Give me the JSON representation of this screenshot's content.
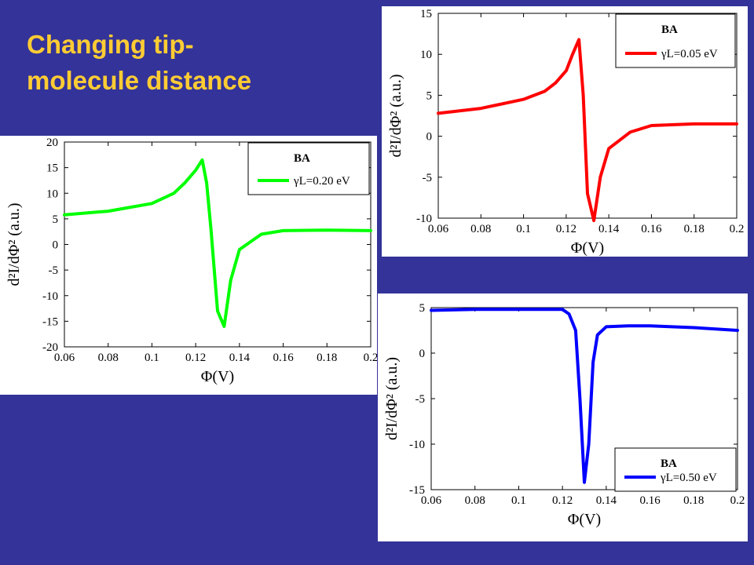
{
  "slide": {
    "title_line1": "Changing tip-",
    "title_line2": "molecule distance"
  },
  "chart_data": [
    {
      "type": "line",
      "color": "#ff0000",
      "xlabel": "Φ(V)",
      "ylabel": "d²I/dΦ² (a.u.)",
      "xlim": [
        0.06,
        0.2
      ],
      "ylim": [
        -10,
        15
      ],
      "xticks": [
        "0.06",
        "0.08",
        "0.1",
        "0.12",
        "0.14",
        "0.16",
        "0.18",
        "0.2"
      ],
      "yticks": [
        "-10",
        "-5",
        "0",
        "5",
        "10",
        "15"
      ],
      "legend_placement": "top-right",
      "legend_title": "BA",
      "legend_label": "γL=0.05 eV",
      "series": [
        {
          "x": [
            0.06,
            0.08,
            0.1,
            0.11,
            0.115,
            0.12,
            0.123,
            0.126,
            0.128,
            0.13,
            0.133,
            0.136,
            0.14,
            0.15,
            0.16,
            0.18,
            0.2
          ],
          "y": [
            2.8,
            3.4,
            4.5,
            5.5,
            6.5,
            8.0,
            10.0,
            11.8,
            5.0,
            -7.0,
            -10.3,
            -5.0,
            -1.5,
            0.5,
            1.3,
            1.5,
            1.5
          ]
        }
      ]
    },
    {
      "type": "line",
      "color": "#00ff00",
      "xlabel": "Φ(V)",
      "ylabel": "d²I/dΦ² (a.u.)",
      "xlim": [
        0.06,
        0.2
      ],
      "ylim": [
        -20,
        20
      ],
      "xticks": [
        "0.06",
        "0.08",
        "0.1",
        "0.12",
        "0.14",
        "0.16",
        "0.18",
        "0.2"
      ],
      "yticks": [
        "-20",
        "-15",
        "-10",
        "-5",
        "0",
        "5",
        "10",
        "15",
        "20"
      ],
      "legend_placement": "top-right",
      "legend_title": "BA",
      "legend_label": "γL=0.20 eV",
      "series": [
        {
          "x": [
            0.06,
            0.08,
            0.1,
            0.11,
            0.115,
            0.12,
            0.123,
            0.125,
            0.127,
            0.13,
            0.133,
            0.136,
            0.14,
            0.15,
            0.16,
            0.18,
            0.2
          ],
          "y": [
            5.8,
            6.5,
            8.0,
            10.0,
            12.0,
            14.5,
            16.5,
            12.0,
            3.0,
            -13.0,
            -16.0,
            -7.0,
            -1.0,
            2.0,
            2.7,
            2.8,
            2.7
          ]
        }
      ]
    },
    {
      "type": "line",
      "color": "#0000ff",
      "xlabel": "Φ(V)",
      "ylabel": "d²I/dΦ² (a.u.)",
      "xlim": [
        0.06,
        0.2
      ],
      "ylim": [
        -15,
        5
      ],
      "xticks": [
        "0.06",
        "0.08",
        "0.1",
        "0.12",
        "0.14",
        "0.16",
        "0.18",
        "0.2"
      ],
      "yticks": [
        "-15",
        "-10",
        "-5",
        "0",
        "5"
      ],
      "legend_placement": "bottom-right",
      "legend_title": "BA",
      "legend_label": "γL=0.50 eV",
      "series": [
        {
          "x": [
            0.06,
            0.08,
            0.1,
            0.115,
            0.12,
            0.123,
            0.126,
            0.128,
            0.13,
            0.132,
            0.134,
            0.136,
            0.14,
            0.15,
            0.16,
            0.18,
            0.2
          ],
          "y": [
            4.7,
            4.8,
            4.8,
            4.8,
            4.8,
            4.3,
            2.5,
            -5.0,
            -14.2,
            -10.0,
            -1.0,
            2.0,
            2.9,
            3.0,
            3.0,
            2.8,
            2.5
          ]
        }
      ]
    }
  ]
}
